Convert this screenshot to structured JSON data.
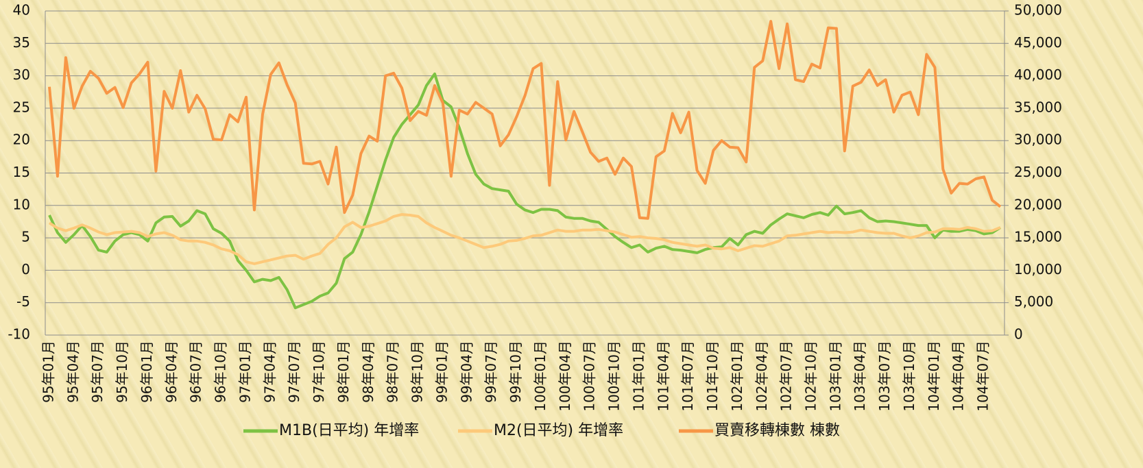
{
  "chart_data": {
    "type": "line",
    "categories": [
      "95年01月",
      null,
      null,
      "95年04月",
      null,
      null,
      "95年07月",
      null,
      null,
      "95年10月",
      null,
      null,
      "96年01月",
      null,
      null,
      "96年04月",
      null,
      null,
      "96年07月",
      null,
      null,
      "96年10月",
      null,
      null,
      "97年01月",
      null,
      null,
      "97年04月",
      null,
      null,
      "97年07月",
      null,
      null,
      "97年10月",
      null,
      null,
      "98年01月",
      null,
      null,
      "98年04月",
      null,
      null,
      "98年07月",
      null,
      null,
      "98年10月",
      null,
      null,
      "99年01月",
      null,
      null,
      "99年04月",
      null,
      null,
      "99年07月",
      null,
      null,
      "99年10月",
      null,
      null,
      "100年01月",
      null,
      null,
      "100年04月",
      null,
      null,
      "100年07月",
      null,
      null,
      "100年10月",
      null,
      null,
      "101年01月",
      null,
      null,
      "101年04月",
      null,
      null,
      "101年07月",
      null,
      null,
      "101年10月",
      null,
      null,
      "102年01月",
      null,
      null,
      "102年04月",
      null,
      null,
      "102年07月",
      null,
      null,
      "102年10月",
      null,
      null,
      "103年01月",
      null,
      null,
      "103年04月",
      null,
      null,
      "103年07月",
      null,
      null,
      "103年10月",
      null,
      null,
      "104年01月",
      null,
      null,
      "104年04月",
      null,
      null,
      "104年07月",
      null,
      null
    ],
    "series": [
      {
        "name": "M1B(日平均) 年增率",
        "color": "#7dc243",
        "values": [
          8.5,
          5.8,
          4.3,
          5.5,
          6.9,
          5.2,
          3.1,
          2.8,
          4.5,
          5.5,
          5.8,
          5.5,
          4.5,
          7.3,
          8.2,
          8.3,
          6.8,
          7.6,
          9.2,
          8.7,
          6.4,
          5.7,
          4.5,
          1.5,
          0,
          -1.8,
          -1.4,
          -1.6,
          -1.1,
          -3,
          -5.8,
          -5.3,
          -4.8,
          -4.0,
          -3.5,
          -2,
          1.8,
          2.8,
          5.5,
          9,
          13,
          17,
          20.5,
          22.5,
          24,
          25.5,
          28.5,
          30.3,
          26.2,
          25.2,
          22,
          18,
          14.8,
          13.3,
          12.6,
          12.4,
          12.2,
          10.2,
          9.3,
          8.9,
          9.4,
          9.4,
          9.2,
          8.2,
          8.0,
          8.0,
          7.6,
          7.4,
          6.3,
          5.2,
          4.3,
          3.5,
          3.9,
          2.8,
          3.4,
          3.7,
          3.2,
          3.1,
          2.9,
          2.7,
          3.2,
          3.5,
          3.6,
          4.9,
          3.9,
          5.5,
          6.0,
          5.7,
          7.0,
          7.9,
          8.7,
          8.4,
          8.1,
          8.6,
          8.9,
          8.5,
          9.9,
          8.7,
          8.9,
          9.2,
          8.1,
          7.5,
          7.6,
          7.5,
          7.3,
          7.1,
          6.9,
          6.9,
          5.0,
          6.2,
          6.0,
          6.0,
          6.3,
          6.1,
          5.6,
          5.8,
          6.6
        ]
      },
      {
        "name": "M2(日平均) 年增率",
        "color": "#fdc97a",
        "values": [
          7.3,
          6.5,
          6.1,
          6.5,
          7.0,
          6.5,
          5.9,
          5.5,
          5.8,
          5.9,
          6.0,
          5.8,
          5.2,
          5.6,
          5.8,
          5.4,
          4.7,
          4.5,
          4.5,
          4.3,
          3.9,
          3.3,
          3.0,
          2.4,
          1.3,
          1.0,
          1.3,
          1.6,
          1.9,
          2.2,
          2.3,
          1.7,
          2.2,
          2.6,
          4.0,
          5.0,
          6.7,
          7.4,
          6.6,
          6.8,
          7.2,
          7.6,
          8.3,
          8.6,
          8.5,
          8.3,
          7.3,
          6.6,
          6.0,
          5.4,
          5.0,
          4.5,
          4.0,
          3.5,
          3.7,
          4.0,
          4.5,
          4.6,
          4.9,
          5.3,
          5.4,
          5.8,
          6.2,
          6.0,
          6.0,
          6.2,
          6.2,
          6.3,
          6.1,
          5.9,
          5.5,
          5.1,
          5.2,
          5.0,
          4.9,
          4.7,
          4.3,
          4.1,
          3.9,
          3.7,
          3.9,
          3.4,
          3.3,
          3.5,
          3.0,
          3.4,
          3.8,
          3.7,
          4.1,
          4.5,
          5.3,
          5.4,
          5.6,
          5.8,
          6.0,
          5.8,
          5.9,
          5.8,
          5.9,
          6.2,
          6.0,
          5.8,
          5.7,
          5.7,
          5.3,
          5.0,
          5.3,
          5.8,
          5.9,
          6.4,
          6.4,
          6.3,
          6.6,
          6.4,
          6.0,
          6.1,
          6.6
        ]
      },
      {
        "name": "買賣移轉棟數 棟數",
        "color": "#f79646",
        "axis": "y2",
        "values": [
          38300,
          24500,
          42800,
          35000,
          38400,
          40700,
          39600,
          37300,
          38200,
          35100,
          38900,
          40300,
          42100,
          25300,
          37600,
          35000,
          40800,
          34400,
          37000,
          34900,
          30200,
          30100,
          34000,
          32900,
          36700,
          19300,
          34000,
          40200,
          42000,
          38600,
          35800,
          26500,
          26400,
          26800,
          23300,
          29000,
          18900,
          21600,
          28000,
          30700,
          29900,
          40000,
          40400,
          38100,
          33100,
          34500,
          33900,
          38500,
          35800,
          24500,
          34700,
          34100,
          35900,
          35000,
          34100,
          29200,
          30900,
          33700,
          36900,
          41100,
          41900,
          23100,
          39100,
          30100,
          34500,
          31400,
          28200,
          26800,
          27300,
          24800,
          27300,
          26000,
          18100,
          18000,
          27500,
          28400,
          34200,
          31200,
          34400,
          25400,
          23400,
          28500,
          30000,
          29000,
          28900,
          26700,
          41300,
          42300,
          48400,
          41100,
          48000,
          39400,
          39100,
          41800,
          41200,
          47400,
          47300,
          28400,
          38400,
          39000,
          40900,
          38500,
          39400,
          34400,
          37000,
          37500,
          34000,
          43300,
          41300,
          25600,
          21900,
          23400,
          23300,
          24100,
          24400,
          20800,
          19800
        ]
      }
    ],
    "ylim": [
      -10,
      40
    ],
    "yticks": [
      -10,
      -5,
      0,
      5,
      10,
      15,
      20,
      25,
      30,
      35,
      40
    ],
    "y2lim": [
      0,
      50000
    ],
    "y2ticks": [
      0,
      {
        "value": 5000,
        "label": "5,000"
      },
      {
        "value": 10000,
        "label": "10,000"
      },
      {
        "value": 15000,
        "label": "15,000"
      },
      {
        "value": 20000,
        "label": "20,000"
      },
      {
        "value": 25000,
        "label": "25,000"
      },
      {
        "value": 30000,
        "label": "30,000"
      },
      {
        "value": 35000,
        "label": "35,000"
      },
      {
        "value": 40000,
        "label": "40,000"
      },
      {
        "value": 45000,
        "label": "45,000"
      },
      {
        "value": 50000,
        "label": "50,000"
      }
    ],
    "grid": true,
    "legend": "bottom"
  }
}
